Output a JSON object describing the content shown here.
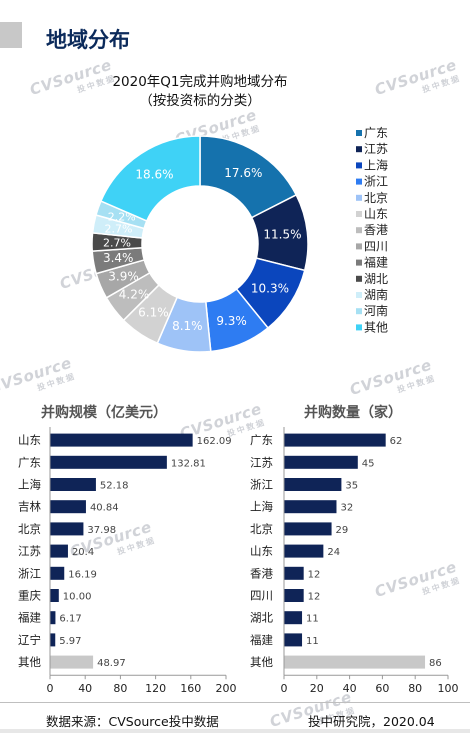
{
  "page_title": "地域分布",
  "footer": {
    "source": "数据来源：CVSource投中数据",
    "org": "投中研究院，2020.04"
  },
  "watermark": {
    "brand": "CVSource",
    "sub": "投中数据"
  },
  "colors": {
    "navy": "#0f2457",
    "gray_bar": "#c8c8c8",
    "title": "#0b2a5b"
  },
  "chart_data": [
    {
      "type": "pie",
      "title": "2020年Q1完成并购地域分布",
      "subtitle": "（按投资标的分类）",
      "donut": true,
      "legend_position": "right",
      "slices": [
        {
          "label": "广东",
          "value": 17.6,
          "display": "17.6%",
          "color": "#1572ad"
        },
        {
          "label": "江苏",
          "value": 11.5,
          "display": "11.5%",
          "color": "#0f2457"
        },
        {
          "label": "上海",
          "value": 10.3,
          "display": "10.3%",
          "color": "#0b46bd"
        },
        {
          "label": "浙江",
          "value": 9.3,
          "display": "9.3%",
          "color": "#2e7cf2"
        },
        {
          "label": "北京",
          "value": 8.1,
          "display": "8.1%",
          "color": "#9ec3f7"
        },
        {
          "label": "山东",
          "value": 6.1,
          "display": "6.1%",
          "color": "#d2d2d2"
        },
        {
          "label": "香港",
          "value": 4.2,
          "display": "4.2%",
          "color": "#bdbdbd"
        },
        {
          "label": "四川",
          "value": 3.9,
          "display": "3.9%",
          "color": "#a7a7a7"
        },
        {
          "label": "福建",
          "value": 3.4,
          "display": "3.4%",
          "color": "#7b7b7b"
        },
        {
          "label": "湖北",
          "value": 2.7,
          "display": "2.7%",
          "color": "#4a4a4a"
        },
        {
          "label": "湖南",
          "value": 2.7,
          "display": "2.7%",
          "color": "#cfeef9"
        },
        {
          "label": "河南",
          "value": 2.2,
          "display": "2.2%",
          "color": "#a6e0f3"
        },
        {
          "label": "其他",
          "value": 18.6,
          "display": "18.6%",
          "color": "#3fd2f6"
        }
      ]
    },
    {
      "type": "bar",
      "orientation": "horizontal",
      "title": "并购规模（亿美元）",
      "categories": [
        "山东",
        "广东",
        "上海",
        "吉林",
        "北京",
        "江苏",
        "浙江",
        "重庆",
        "福建",
        "辽宁",
        "其他"
      ],
      "values": [
        162.09,
        132.81,
        52.18,
        40.84,
        37.98,
        20.4,
        16.19,
        10.0,
        6.17,
        5.97,
        48.97
      ],
      "value_labels": [
        "162.09",
        "132.81",
        "52.18",
        "40.84",
        "37.98",
        "20.4",
        "16.19",
        "10.00",
        "6.17",
        "5.97",
        "48.97"
      ],
      "xlim": [
        0,
        200
      ],
      "xticks": [
        0,
        40,
        80,
        120,
        160,
        200
      ],
      "highlight_last_gray": true
    },
    {
      "type": "bar",
      "orientation": "horizontal",
      "title": "并购数量（家）",
      "categories": [
        "广东",
        "江苏",
        "浙江",
        "上海",
        "北京",
        "山东",
        "香港",
        "四川",
        "湖北",
        "福建",
        "其他"
      ],
      "values": [
        62,
        45,
        35,
        32,
        29,
        24,
        12,
        12,
        11,
        11,
        86
      ],
      "value_labels": [
        "62",
        "45",
        "35",
        "32",
        "29",
        "24",
        "12",
        "12",
        "11",
        "11",
        "86"
      ],
      "xlim": [
        0,
        100
      ],
      "xticks": [
        0,
        20,
        40,
        60,
        80,
        100
      ],
      "highlight_last_gray": true
    }
  ]
}
